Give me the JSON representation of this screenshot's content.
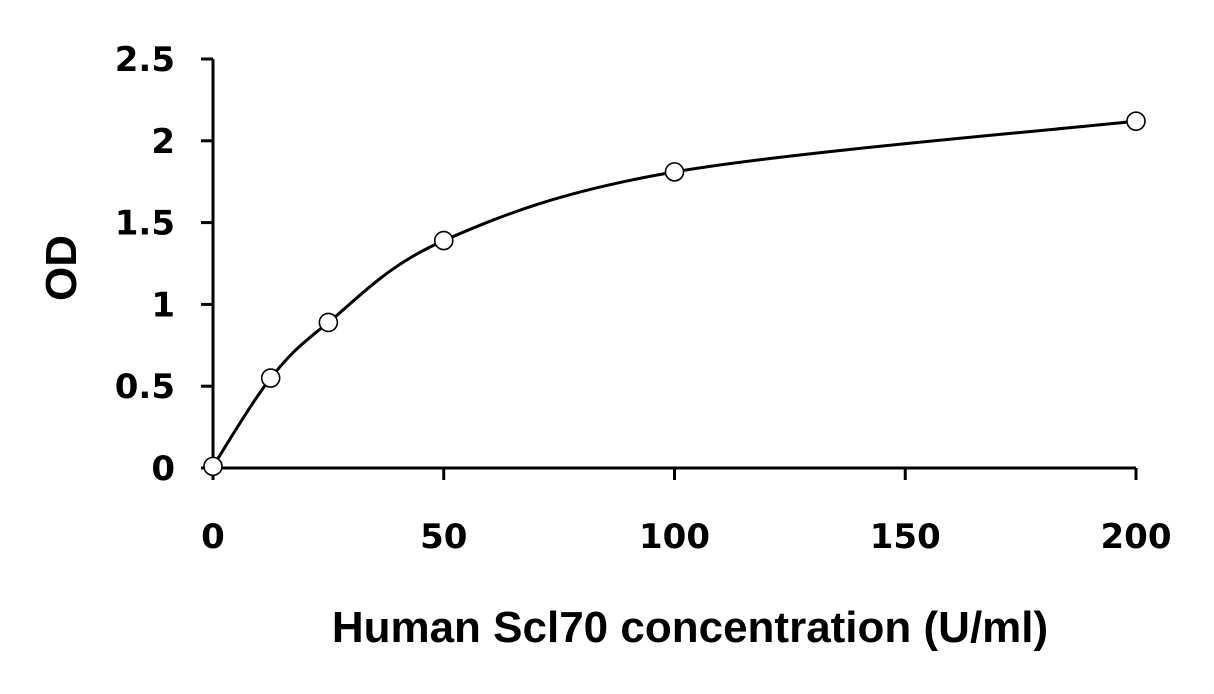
{
  "chart_data": {
    "type": "scatter",
    "title": "",
    "xlabel": "Human Scl70 concentration (U/ml)",
    "ylabel": "OD",
    "xlim": [
      0,
      200
    ],
    "ylim": [
      0,
      2.5
    ],
    "x_ticks": [
      0,
      50,
      100,
      150,
      200
    ],
    "x_tick_labels": [
      "0",
      "50",
      "100",
      "150",
      "200"
    ],
    "y_ticks": [
      0,
      0.5,
      1,
      1.5,
      2,
      2.5
    ],
    "y_tick_labels": [
      "0",
      "0.5",
      "1",
      "1.5",
      "2",
      "2.5"
    ],
    "grid": false,
    "legend": "none",
    "series": [
      {
        "marker": "open-circle",
        "line": "smooth-fit",
        "color": "#000000",
        "points": [
          {
            "x": 0,
            "y": 0.01
          },
          {
            "x": 12.5,
            "y": 0.55
          },
          {
            "x": 25,
            "y": 0.89
          },
          {
            "x": 50,
            "y": 1.39
          },
          {
            "x": 100,
            "y": 1.81
          },
          {
            "x": 200,
            "y": 2.12
          }
        ]
      }
    ]
  }
}
